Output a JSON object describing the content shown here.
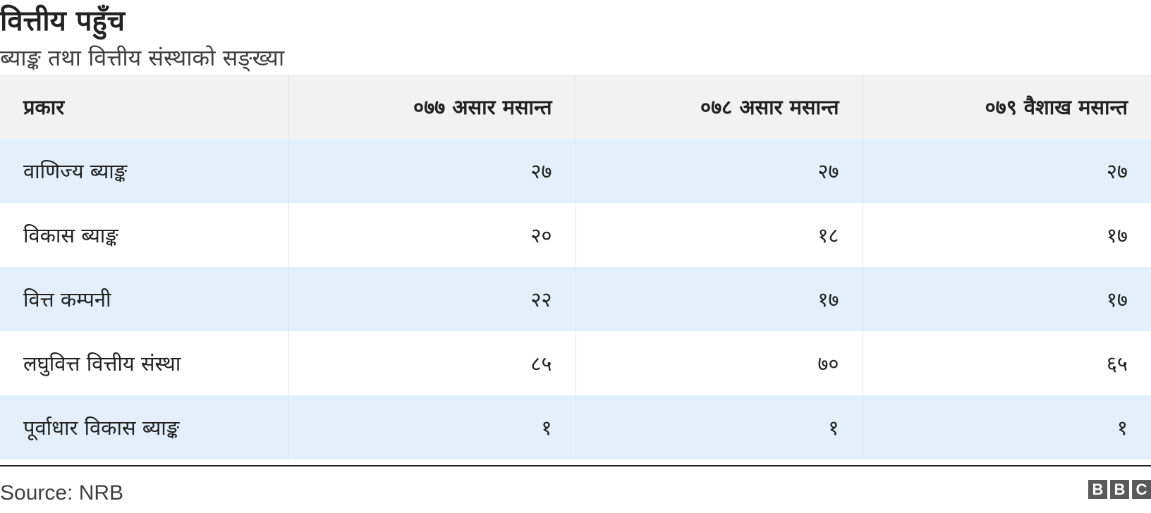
{
  "chart_data": {
    "type": "table",
    "title": "वित्तीय पहुँच",
    "subtitle": "ब्याङ्क तथा वित्तीय संस्थाको सङ्ख्या",
    "columns": [
      "प्रकार",
      "०७७ असार मसान्त",
      "०७८ असार मसान्त",
      "०७९ वैशाख मसान्त"
    ],
    "rows": [
      [
        "वाणिज्य ब्याङ्क",
        "२७",
        "२७",
        "२७"
      ],
      [
        "विकास ब्याङ्क",
        "२०",
        "१८",
        "१७"
      ],
      [
        "वित्त कम्पनी",
        "२२",
        "१७",
        "१७"
      ],
      [
        "लघुवित्त वित्तीय संस्था",
        "८५",
        "७०",
        "६५"
      ],
      [
        "पूर्वाधार विकास ब्याङ्क",
        "१",
        "१",
        "१"
      ]
    ],
    "values": [
      [
        27,
        27,
        27
      ],
      [
        20,
        18,
        17
      ],
      [
        22,
        17,
        17
      ],
      [
        85,
        70,
        65
      ],
      [
        1,
        1,
        1
      ]
    ]
  },
  "footer": {
    "source": "Source:  NRB",
    "logo_letters": [
      "B",
      "B",
      "C"
    ]
  },
  "colors": {
    "header_bg": "#f2f2f2",
    "stripe_bg": "#e3f0fb",
    "text": "#222222",
    "logo_bg": "#5a5a5a"
  }
}
